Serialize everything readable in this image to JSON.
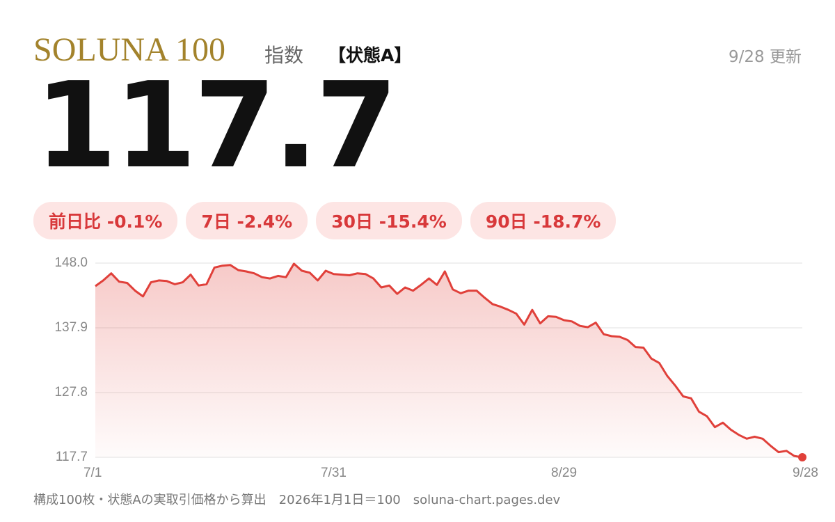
{
  "header": {
    "brand": "SOLUNA 100",
    "label": "指数",
    "state": "【状態A】",
    "updated": "9/28 更新"
  },
  "current_value": "117.7",
  "badges": [
    "前日比 -0.1%",
    "7日 -2.4%",
    "30日 -15.4%",
    "90日 -18.7%"
  ],
  "chart_data": {
    "type": "line",
    "categories": [
      "7/1",
      null,
      null,
      null,
      null,
      null,
      null,
      null,
      null,
      null,
      null,
      null,
      null,
      null,
      null,
      null,
      null,
      null,
      null,
      null,
      null,
      null,
      null,
      null,
      null,
      null,
      null,
      null,
      null,
      null,
      "7/31",
      null,
      null,
      null,
      null,
      null,
      null,
      null,
      null,
      null,
      null,
      null,
      null,
      null,
      null,
      null,
      null,
      null,
      null,
      null,
      null,
      null,
      null,
      null,
      null,
      null,
      null,
      null,
      null,
      "8/29",
      null,
      null,
      null,
      null,
      null,
      null,
      null,
      null,
      null,
      null,
      null,
      null,
      null,
      null,
      null,
      null,
      null,
      null,
      null,
      null,
      null,
      null,
      null,
      null,
      null,
      null,
      null,
      null,
      null,
      "9/28"
    ],
    "values": [
      144.4,
      145.3,
      146.4,
      145.1,
      144.9,
      143.7,
      142.8,
      145.0,
      145.3,
      145.2,
      144.7,
      145.0,
      146.2,
      144.5,
      144.7,
      147.3,
      147.6,
      147.7,
      146.9,
      146.7,
      146.4,
      145.8,
      145.6,
      146.0,
      145.8,
      147.9,
      146.8,
      146.5,
      145.3,
      146.8,
      146.3,
      146.2,
      146.1,
      146.4,
      146.3,
      145.6,
      144.2,
      144.5,
      143.2,
      144.2,
      143.7,
      144.6,
      145.6,
      144.6,
      146.7,
      143.9,
      143.3,
      143.7,
      143.7,
      142.6,
      141.6,
      141.2,
      140.7,
      140.1,
      138.4,
      140.7,
      138.6,
      139.7,
      139.6,
      139.1,
      138.9,
      138.2,
      138.0,
      138.7,
      136.9,
      136.6,
      136.5,
      136.0,
      134.9,
      134.8,
      133.1,
      132.4,
      130.4,
      128.9,
      127.2,
      126.9,
      124.8,
      124.1,
      122.4,
      123.1,
      122.0,
      121.2,
      120.6,
      120.9,
      120.6,
      119.5,
      118.5,
      118.7,
      117.9,
      117.7
    ],
    "color": "#e0403a",
    "ylim": [
      117.7,
      148.0
    ],
    "yticks": [
      117.7,
      127.8,
      137.9,
      {
        "value": 148.0,
        "label": "148.0"
      }
    ],
    "grid": true
  },
  "footer": "構成100枚・状態Aの実取引価格から算出　2026年1月1日＝100　soluna-chart.pages.dev"
}
